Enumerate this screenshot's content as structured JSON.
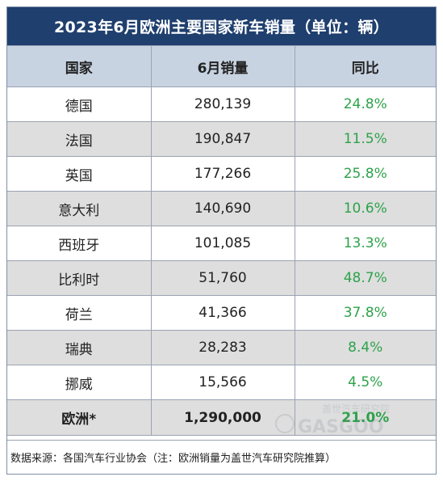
{
  "title": "2023年6月欧洲主要国家新车销量（单位：辆）",
  "headers": [
    "国家",
    "6月销量",
    "同比"
  ],
  "rows": [
    {
      "country": "德国",
      "sales": "280,139",
      "yoy": "24.8%"
    },
    {
      "country": "法国",
      "sales": "190,847",
      "yoy": "11.5%"
    },
    {
      "country": "英国",
      "sales": "177,266",
      "yoy": "25.8%"
    },
    {
      "country": "意大利",
      "sales": "140,690",
      "yoy": "10.6%"
    },
    {
      "country": "西班牙",
      "sales": "101,085",
      "yoy": "13.3%"
    },
    {
      "country": "比利时",
      "sales": "51,760",
      "yoy": "48.7%"
    },
    {
      "country": "荷兰",
      "sales": "41,366",
      "yoy": "37.8%"
    },
    {
      "country": "瑞典",
      "sales": "28,283",
      "yoy": "8.4%"
    },
    {
      "country": "挪威",
      "sales": "15,566",
      "yoy": "4.5%"
    }
  ],
  "total": {
    "country": "欧洲*",
    "sales": "1,290,000",
    "yoy": "21.0%"
  },
  "footnote": "数据来源：各国汽车行业协会（注：欧洲销量为盖世汽车研究院推算）",
  "watermark": {
    "text": "盖世汽车研究院",
    "brand": "GASGOO"
  },
  "colors": {
    "title_bg": "#1f3f6e",
    "header_bg": "#c8d3e2",
    "stripe": "#dedede",
    "growth": "#2ea24a"
  }
}
